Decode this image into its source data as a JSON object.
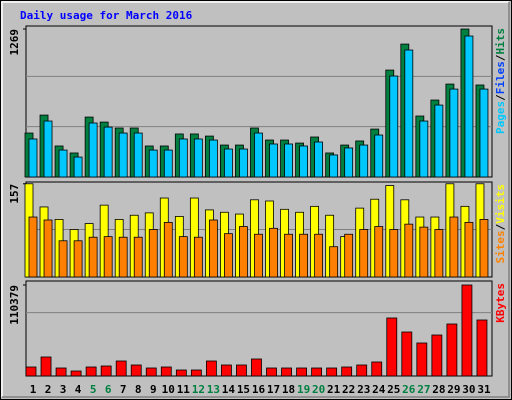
{
  "title": "Daily usage for March 2016",
  "legend_separator": "/",
  "chart_data": [
    {
      "type": "bar",
      "ylim": [
        0,
        1295
      ],
      "yticks": [
        1269
      ],
      "series": [
        {
          "name": "Hits",
          "color": "#008040",
          "values": [
            377,
            531,
            266,
            206,
            514,
            471,
            420,
            420,
            266,
            266,
            369,
            369,
            351,
            274,
            274,
            420,
            317,
            317,
            291,
            343,
            206,
            274,
            309,
            411,
            917,
            1140,
            523,
            660,
            797,
            1269,
            789
          ]
        },
        {
          "name": "Pages",
          "color": "#00c8ff",
          "values": [
            326,
            480,
            231,
            171,
            463,
            428,
            377,
            377,
            231,
            231,
            326,
            326,
            317,
            240,
            240,
            377,
            283,
            283,
            266,
            300,
            189,
            249,
            274,
            360,
            866,
            1089,
            480,
            617,
            754,
            1209,
            754
          ]
        }
      ],
      "legend_extra": {
        "name": "Files",
        "color": "#0040ff"
      },
      "legend_order": [
        "Pages",
        "Files",
        "Hits"
      ]
    },
    {
      "type": "bar",
      "ylim": [
        0,
        160
      ],
      "yticks": [
        157
      ],
      "series": [
        {
          "name": "Visits",
          "color": "#ffff00",
          "values": [
            157,
            118,
            97,
            80,
            90,
            121,
            97,
            104,
            108,
            133,
            102,
            133,
            113,
            109,
            106,
            130,
            128,
            114,
            109,
            119,
            104,
            68,
            116,
            131,
            154,
            130,
            101,
            101,
            157,
            119,
            157
          ]
        },
        {
          "name": "Sites",
          "color": "#ff8000",
          "values": [
            101,
            96,
            61,
            61,
            67,
            68,
            67,
            67,
            80,
            92,
            68,
            67,
            96,
            73,
            85,
            72,
            82,
            72,
            72,
            72,
            51,
            72,
            80,
            85,
            80,
            89,
            84,
            80,
            101,
            92,
            97
          ]
        }
      ],
      "legend_order": [
        "Sites",
        "Visits"
      ]
    },
    {
      "type": "bar",
      "ylim": [
        0,
        115230
      ],
      "yticks": [
        110379
      ],
      "series": [
        {
          "name": "KBytes",
          "color": "#ff0000",
          "values": [
            10917,
            23047,
            9704,
            6065,
            10917,
            12130,
            18195,
            13343,
            9704,
            10917,
            7278,
            7278,
            18195,
            13343,
            13343,
            20621,
            9704,
            9704,
            9704,
            9704,
            9704,
            10917,
            13343,
            16982,
            70354,
            53372,
            40029,
            49733,
            63076,
            110379,
            67928
          ]
        }
      ],
      "legend_order": [
        "KBytes"
      ],
      "categories": [
        "1",
        "2",
        "3",
        "4",
        "5",
        "6",
        "7",
        "8",
        "9",
        "10",
        "11",
        "12",
        "13",
        "14",
        "15",
        "16",
        "17",
        "18",
        "19",
        "20",
        "21",
        "22",
        "23",
        "24",
        "25",
        "26",
        "27",
        "28",
        "29",
        "30",
        "31"
      ],
      "category_colors": [
        "#000000",
        "#000000",
        "#000000",
        "#000000",
        "#008040",
        "#008040",
        "#000000",
        "#000000",
        "#000000",
        "#000000",
        "#000000",
        "#008040",
        "#008040",
        "#000000",
        "#000000",
        "#000000",
        "#000000",
        "#000000",
        "#008040",
        "#008040",
        "#000000",
        "#000000",
        "#000000",
        "#000000",
        "#000000",
        "#008040",
        "#008040",
        "#000000",
        "#000000",
        "#000000",
        "#000000"
      ]
    }
  ]
}
